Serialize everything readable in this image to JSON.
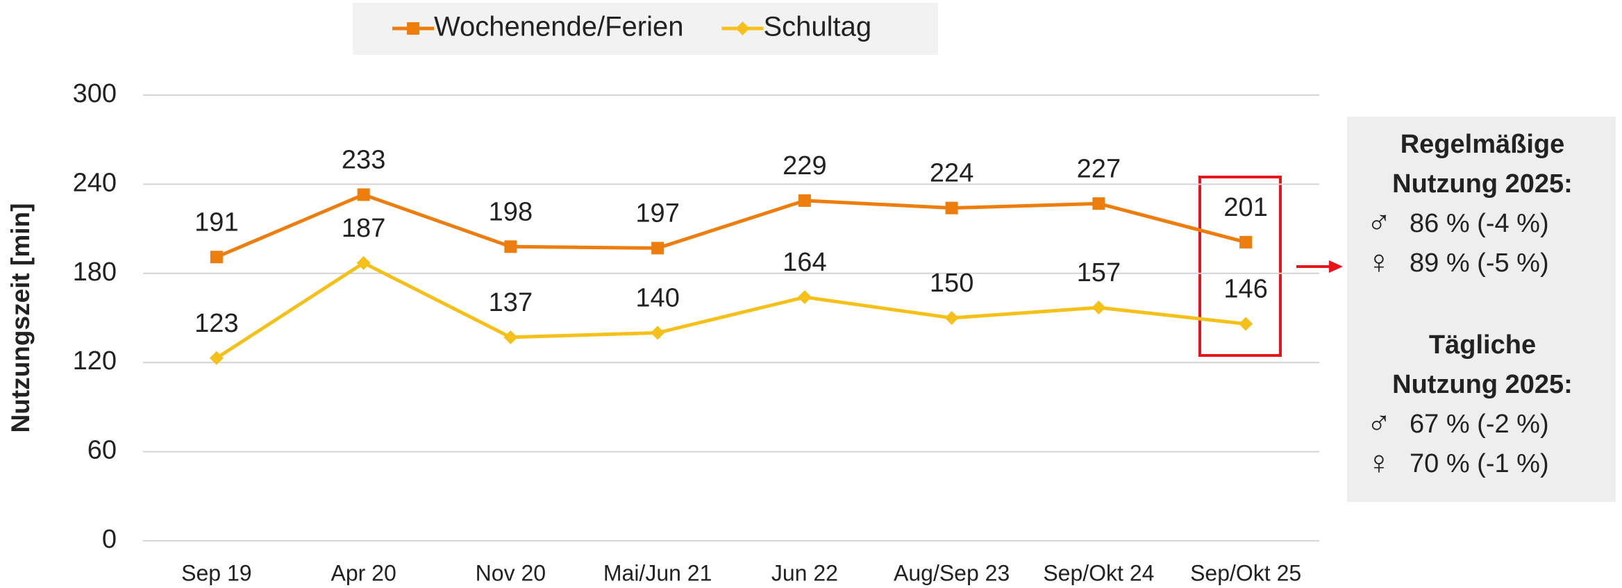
{
  "chart_data": {
    "type": "line",
    "y_axis_label": "Nutzungszeit [min]",
    "categories": [
      "Sep 19",
      "Apr 20",
      "Nov 20",
      "Mai/Jun 21",
      "Jun 22",
      "Aug/Sep 23",
      "Sep/Okt 24",
      "Sep/Okt 25"
    ],
    "series": [
      {
        "name": "Wochenende/Ferien",
        "color": "#ed7d0d",
        "marker": "square",
        "values": [
          191,
          233,
          198,
          197,
          229,
          224,
          227,
          201
        ]
      },
      {
        "name": "Schultag",
        "color": "#f5c01a",
        "marker": "diamond",
        "values": [
          123,
          187,
          137,
          140,
          164,
          150,
          157,
          146
        ]
      }
    ],
    "ylim": [
      0,
      300
    ],
    "yticks": [
      0,
      60,
      120,
      180,
      240,
      300
    ],
    "grid": true,
    "legend": "top",
    "annotations": [
      {
        "title": [
          "Regelmäßige",
          "Nutzung 2025:"
        ],
        "lines": [
          {
            "symbol": "♂",
            "text": "86 % (-4 %)"
          },
          {
            "symbol": "♀",
            "text": "89 % (-5 %)"
          }
        ]
      },
      {
        "title": [
          "Tägliche",
          "Nutzung 2025:"
        ],
        "lines": [
          {
            "symbol": "♂",
            "text": "67 % (-2 %)"
          },
          {
            "symbol": "♀",
            "text": "70 % (-1 %)"
          }
        ]
      }
    ]
  }
}
